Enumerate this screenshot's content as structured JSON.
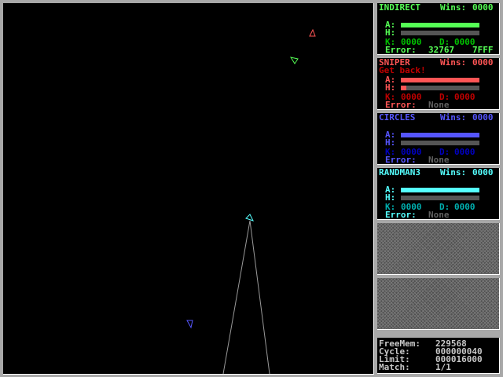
{
  "robots": [
    {
      "name": "INDIRECT",
      "wins_label": "Wins:",
      "wins": "0000",
      "message": "",
      "armor": 100,
      "heat": 0,
      "k_label": "K:",
      "kills": "0000",
      "d_label": "D:",
      "deaths": "0000",
      "error_label": "Error:",
      "error": "32767",
      "error_hex": "7FFF",
      "color": "#55ff55",
      "dim": "#00c000"
    },
    {
      "name": "SNIPER",
      "wins_label": "Wins:",
      "wins": "0000",
      "message": "Get back!",
      "armor": 100,
      "heat": 7,
      "k_label": "K:",
      "kills": "0000",
      "d_label": "D:",
      "deaths": "0000",
      "error_label": "Error:",
      "error": "None",
      "error_hex": "",
      "color": "#ff5555",
      "dim": "#c00000"
    },
    {
      "name": "CIRCLES",
      "wins_label": "Wins:",
      "wins": "0000",
      "message": "",
      "armor": 100,
      "heat": 0,
      "k_label": "K:",
      "kills": "0000",
      "d_label": "D:",
      "deaths": "0000",
      "error_label": "Error:",
      "error": "None",
      "error_hex": "",
      "color": "#5555ff",
      "dim": "#0000c0"
    },
    {
      "name": "RANDMAN3",
      "wins_label": "Wins:",
      "wins": "0000",
      "message": "",
      "armor": 100,
      "heat": 0,
      "k_label": "K:",
      "kills": "0000",
      "d_label": "D:",
      "deaths": "0000",
      "error_label": "Error:",
      "error": "None",
      "error_hex": "",
      "color": "#55ffff",
      "dim": "#00b0b0"
    }
  ],
  "labels": {
    "armor": "A:",
    "heat": "H:"
  },
  "info": {
    "freemem_label": "FreeMem:",
    "freemem": "229568",
    "cycle_label": "Cycle:",
    "cycle": "000000040",
    "limit_label": "Limit:",
    "limit": "000016000",
    "match_label": "Match:",
    "match": "1/1"
  }
}
